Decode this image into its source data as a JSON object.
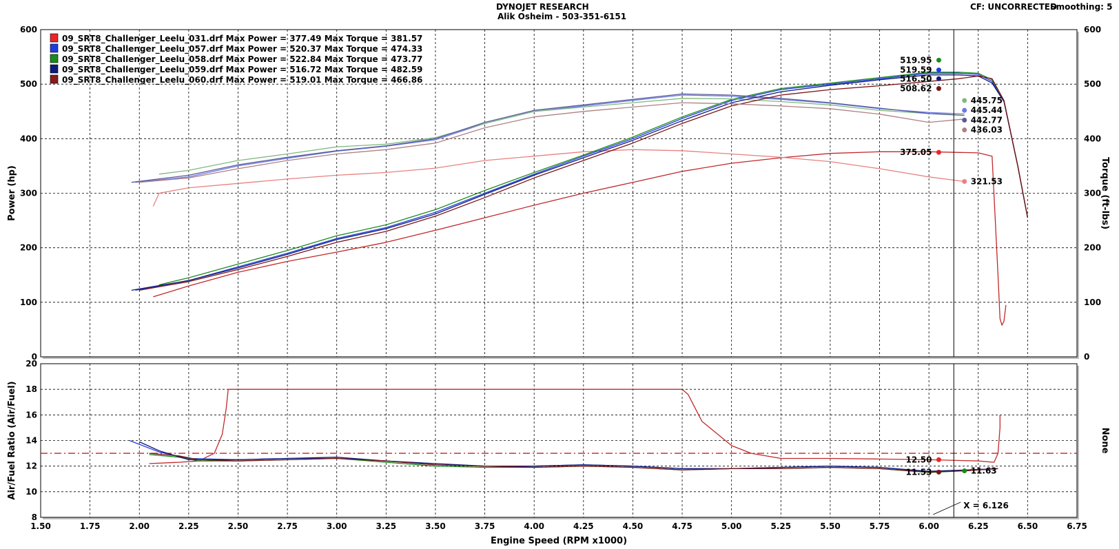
{
  "header": {
    "title": "DYNOJET RESEARCH",
    "subtitle": "Alik Osheim - 503-351-6151",
    "cf": "CF: UNCORRECTED",
    "smoothing": "Smoothing: 5"
  },
  "chart_data": [
    {
      "type": "line",
      "name": "upper",
      "xlabel": "Engine Speed (RPM x1000)",
      "ylabel": "Power (hp)",
      "ylabel_right": "Torque (ft-lbs)",
      "xlim": [
        1.5,
        6.75
      ],
      "ylim": [
        0,
        600
      ],
      "xticks": [
        "1.50",
        "1.75",
        "2.00",
        "2.25",
        "2.50",
        "2.75",
        "3.00",
        "3.25",
        "3.50",
        "3.75",
        "4.00",
        "4.25",
        "4.50",
        "4.75",
        "5.00",
        "5.25",
        "5.50",
        "5.75",
        "6.00",
        "6.25",
        "6.50",
        "6.75"
      ],
      "yticks": [
        "0",
        "100",
        "200",
        "300",
        "400",
        "500",
        "600"
      ],
      "grid": true,
      "legend_position": "top-left",
      "legend": [
        {
          "color": "#e8262a",
          "text": "09_SRT8_Challenger_Leelu_031.drf Max Power = 377.49 Max Torque = 381.57"
        },
        {
          "color": "#1f3be0",
          "text": "09_SRT8_Challenger_Leelu_057.drf Max Power = 520.37 Max Torque = 474.33"
        },
        {
          "color": "#1b8a1b",
          "text": "09_SRT8_Challenger_Leelu_058.drf Max Power = 522.84 Max Torque = 473.77"
        },
        {
          "color": "#101a7a",
          "text": "09_SRT8_Challenger_Leelu_059.drf Max Power = 516.72 Max Torque = 482.59"
        },
        {
          "color": "#8b1a1a",
          "text": "09_SRT8_Challenger_Leelu_060.drf Max Power = 519.01 Max Torque = 466.86"
        }
      ],
      "cursor_x": 6.126,
      "series": [
        {
          "name": "031 Power",
          "color": "#c0282a",
          "x": [
            2.07,
            2.25,
            2.5,
            2.75,
            3.0,
            3.25,
            3.5,
            3.75,
            4.0,
            4.25,
            4.5,
            4.75,
            5.0,
            5.25,
            5.5,
            5.75,
            6.0,
            6.25,
            6.32,
            6.35,
            6.36,
            6.37,
            6.38,
            6.39
          ],
          "y": [
            110,
            130,
            155,
            175,
            192,
            210,
            232,
            255,
            278,
            300,
            320,
            340,
            355,
            365,
            373,
            376,
            376,
            374,
            368,
            150,
            70,
            58,
            65,
            95
          ]
        },
        {
          "name": "031 Torque",
          "color": "#e88080",
          "x": [
            2.07,
            2.1,
            2.25,
            2.5,
            2.75,
            3.0,
            3.25,
            3.5,
            3.75,
            4.0,
            4.25,
            4.5,
            4.75,
            5.0,
            5.25,
            5.5,
            5.75,
            6.0,
            6.18
          ],
          "y": [
            276,
            300,
            310,
            318,
            326,
            333,
            338,
            346,
            360,
            368,
            376,
            380,
            378,
            372,
            366,
            358,
            345,
            330,
            321.53
          ]
        },
        {
          "name": "057 Power",
          "color": "#1f3be0",
          "x": [
            1.98,
            2.25,
            2.5,
            2.75,
            3.0,
            3.25,
            3.5,
            3.75,
            4.0,
            4.25,
            4.5,
            4.75,
            5.0,
            5.25,
            5.5,
            5.75,
            6.0,
            6.15,
            6.25,
            6.32,
            6.38,
            6.45,
            6.5
          ],
          "y": [
            122,
            140,
            165,
            190,
            217,
            237,
            265,
            300,
            335,
            368,
            400,
            437,
            470,
            490,
            500,
            510,
            520,
            520,
            518,
            505,
            470,
            350,
            255
          ]
        },
        {
          "name": "057 Torque",
          "color": "#6a7ae8",
          "x": [
            1.98,
            2.25,
            2.5,
            2.75,
            3.0,
            3.25,
            3.5,
            3.75,
            4.0,
            4.25,
            4.5,
            4.75,
            5.0,
            5.25,
            5.5,
            5.75,
            6.0,
            6.18
          ],
          "y": [
            320,
            330,
            350,
            364,
            377,
            386,
            398,
            428,
            450,
            460,
            470,
            480,
            478,
            472,
            465,
            455,
            448,
            445.44
          ]
        },
        {
          "name": "058 Power",
          "color": "#1b8a1b",
          "x": [
            2.1,
            2.25,
            2.5,
            2.75,
            3.0,
            3.25,
            3.5,
            3.75,
            4.0,
            4.25,
            4.5,
            4.75,
            5.0,
            5.25,
            5.5,
            5.75,
            6.0,
            6.15,
            6.25,
            6.32,
            6.38,
            6.45,
            6.5
          ],
          "y": [
            132,
            145,
            170,
            195,
            222,
            242,
            270,
            305,
            338,
            370,
            403,
            440,
            472,
            492,
            502,
            512,
            522,
            522,
            520,
            508,
            470,
            350,
            255
          ]
        },
        {
          "name": "058 Torque",
          "color": "#7fb87f",
          "x": [
            2.1,
            2.25,
            2.5,
            2.75,
            3.0,
            3.25,
            3.5,
            3.75,
            4.0,
            4.25,
            4.5,
            4.75,
            5.0,
            5.25,
            5.5,
            5.75,
            6.0,
            6.18
          ],
          "y": [
            335,
            342,
            360,
            372,
            385,
            390,
            402,
            428,
            450,
            458,
            466,
            474,
            473,
            468,
            462,
            452,
            446,
            445.75
          ]
        },
        {
          "name": "059 Power",
          "color": "#101a7a",
          "x": [
            1.96,
            2.25,
            2.5,
            2.75,
            3.0,
            3.25,
            3.5,
            3.75,
            4.0,
            4.25,
            4.5,
            4.75,
            5.0,
            5.25,
            5.5,
            5.75,
            6.0,
            6.15,
            6.25,
            6.32,
            6.38,
            6.45,
            6.5
          ],
          "y": [
            122,
            140,
            163,
            188,
            215,
            235,
            262,
            298,
            333,
            365,
            397,
            433,
            466,
            486,
            498,
            508,
            517,
            517,
            515,
            502,
            468,
            350,
            255
          ]
        },
        {
          "name": "059 Torque",
          "color": "#5a5a9a",
          "x": [
            1.96,
            2.25,
            2.5,
            2.75,
            3.0,
            3.25,
            3.5,
            3.75,
            4.0,
            4.25,
            4.5,
            4.75,
            5.0,
            5.25,
            5.5,
            5.75,
            6.0,
            6.18
          ],
          "y": [
            320,
            333,
            352,
            366,
            378,
            387,
            400,
            430,
            452,
            462,
            472,
            482,
            480,
            474,
            466,
            456,
            446,
            442.77
          ]
        },
        {
          "name": "060 Power",
          "color": "#7a1414",
          "x": [
            2.0,
            2.25,
            2.5,
            2.75,
            3.0,
            3.25,
            3.5,
            3.75,
            4.0,
            4.25,
            4.5,
            4.75,
            5.0,
            5.25,
            5.5,
            5.75,
            6.0,
            6.15,
            6.25,
            6.32,
            6.38,
            6.45,
            6.5
          ],
          "y": [
            122,
            138,
            160,
            184,
            210,
            230,
            258,
            292,
            328,
            360,
            392,
            428,
            460,
            480,
            490,
            497,
            505,
            510,
            515,
            510,
            470,
            350,
            255
          ]
        },
        {
          "name": "060 Torque",
          "color": "#b08080",
          "x": [
            2.0,
            2.25,
            2.5,
            2.75,
            3.0,
            3.25,
            3.5,
            3.75,
            4.0,
            4.25,
            4.5,
            4.75,
            5.0,
            5.25,
            5.5,
            5.75,
            6.0,
            6.18
          ],
          "y": [
            320,
            328,
            345,
            360,
            372,
            380,
            392,
            420,
            440,
            450,
            458,
            466,
            464,
            460,
            455,
            445,
            430,
            436.03
          ]
        }
      ],
      "annotations": [
        {
          "text": "519.95",
          "x": 6.05,
          "y": 544,
          "color": "#1b8a1b",
          "side": "left"
        },
        {
          "text": "519.59",
          "x": 6.05,
          "y": 526,
          "color": "#1f3be0",
          "side": "left"
        },
        {
          "text": "516.50",
          "x": 6.05,
          "y": 510,
          "color": "#101a7a",
          "side": "left"
        },
        {
          "text": "508.62",
          "x": 6.05,
          "y": 492,
          "color": "#7a1414",
          "side": "left"
        },
        {
          "text": "445.75",
          "x": 6.18,
          "y": 470,
          "color": "#7fb87f",
          "side": "right"
        },
        {
          "text": "445.44",
          "x": 6.18,
          "y": 452,
          "color": "#6a7ae8",
          "side": "right"
        },
        {
          "text": "442.77",
          "x": 6.18,
          "y": 434,
          "color": "#5a5a9a",
          "side": "right"
        },
        {
          "text": "436.03",
          "x": 6.18,
          "y": 416,
          "color": "#b08080",
          "side": "right"
        },
        {
          "text": "375.05",
          "x": 6.05,
          "y": 375,
          "color": "#e8262a",
          "side": "left"
        },
        {
          "text": "321.53",
          "x": 6.18,
          "y": 321.53,
          "color": "#e88080",
          "side": "right"
        }
      ]
    },
    {
      "type": "line",
      "name": "lower",
      "xlabel": "Engine Speed (RPM x1000)",
      "ylabel": "Air/Fuel Ratio (Air/Fuel)",
      "ylabel_right": "None",
      "xlim": [
        1.5,
        6.75
      ],
      "ylim": [
        8,
        20
      ],
      "yticks": [
        "8",
        "10",
        "12",
        "14",
        "16",
        "18",
        "20"
      ],
      "grid": true,
      "reference_line": {
        "y": 13.0,
        "color": "#c81e1e",
        "style": "dash-dot"
      },
      "cursor_x": 6.126,
      "cursor_label": "X = 6.126",
      "series": [
        {
          "name": "031 AFR",
          "color": "#c0282a",
          "x": [
            2.05,
            2.2,
            2.3,
            2.38,
            2.42,
            2.44,
            2.45,
            2.46,
            3.0,
            4.0,
            4.75,
            4.78,
            4.85,
            5.0,
            5.1,
            5.25,
            5.5,
            5.75,
            6.0,
            6.25,
            6.33,
            6.35,
            6.36,
            6.36
          ],
          "y": [
            12.2,
            12.3,
            12.4,
            13.0,
            14.5,
            16.5,
            18,
            18,
            18,
            18,
            18,
            17.6,
            15.5,
            13.6,
            13.0,
            12.6,
            12.6,
            12.55,
            12.5,
            12.4,
            12.3,
            13.0,
            15.0,
            16.0
          ]
        },
        {
          "name": "057 AFR",
          "color": "#1f3be0",
          "x": [
            1.95,
            2.1,
            2.25,
            2.5,
            2.75,
            3.0,
            3.25,
            3.5,
            3.75,
            4.0,
            4.25,
            4.5,
            4.75,
            5.0,
            5.25,
            5.5,
            5.75,
            6.0,
            6.2,
            6.35
          ],
          "y": [
            14.0,
            13.1,
            12.6,
            12.5,
            12.6,
            12.6,
            12.4,
            12.1,
            12.0,
            12.0,
            12.1,
            12.0,
            11.8,
            11.8,
            11.9,
            12.0,
            11.9,
            11.55,
            11.7,
            11.8
          ]
        },
        {
          "name": "058 AFR",
          "color": "#1b8a1b",
          "x": [
            2.05,
            2.2,
            2.3,
            2.5,
            2.75,
            3.0,
            3.25,
            3.5,
            3.75,
            4.0,
            4.25,
            4.5,
            4.75,
            5.0,
            5.25,
            5.5,
            5.75,
            6.0,
            6.18,
            6.35
          ],
          "y": [
            12.9,
            12.7,
            12.4,
            12.4,
            12.5,
            12.6,
            12.3,
            12.0,
            11.9,
            11.9,
            12.0,
            11.9,
            11.7,
            11.8,
            11.8,
            11.9,
            11.8,
            11.5,
            11.63,
            11.8
          ]
        },
        {
          "name": "059 AFR",
          "color": "#101a7a",
          "x": [
            2.0,
            2.1,
            2.25,
            2.5,
            2.75,
            3.0,
            3.25,
            3.5,
            3.75,
            4.0,
            4.25,
            4.5,
            4.75,
            5.0,
            5.25,
            5.5,
            5.75,
            6.0,
            6.2,
            6.35
          ],
          "y": [
            13.9,
            13.2,
            12.5,
            12.5,
            12.6,
            12.7,
            12.4,
            12.2,
            12.0,
            12.0,
            12.1,
            12.0,
            11.8,
            11.8,
            11.9,
            12.0,
            11.9,
            11.6,
            11.7,
            11.8
          ]
        },
        {
          "name": "060 AFR",
          "color": "#7a1414",
          "x": [
            2.05,
            2.2,
            2.3,
            2.5,
            2.75,
            3.0,
            3.25,
            3.5,
            3.75,
            4.0,
            4.25,
            4.5,
            4.75,
            5.0,
            5.25,
            5.5,
            5.75,
            6.0,
            6.2,
            6.35
          ],
          "y": [
            13.0,
            12.8,
            12.5,
            12.4,
            12.5,
            12.6,
            12.4,
            12.1,
            12.0,
            11.9,
            12.0,
            11.9,
            11.7,
            11.8,
            11.8,
            11.9,
            11.8,
            11.53,
            11.65,
            11.8
          ]
        }
      ],
      "annotations": [
        {
          "text": "12.50",
          "x": 6.05,
          "y": 12.5,
          "color": "#e8262a",
          "side": "left"
        },
        {
          "text": "11.53",
          "x": 6.05,
          "y": 11.53,
          "color": "#7a1414",
          "side": "left"
        },
        {
          "text": "11.63",
          "x": 6.18,
          "y": 11.63,
          "color": "#1b8a1b",
          "side": "right"
        }
      ]
    }
  ]
}
